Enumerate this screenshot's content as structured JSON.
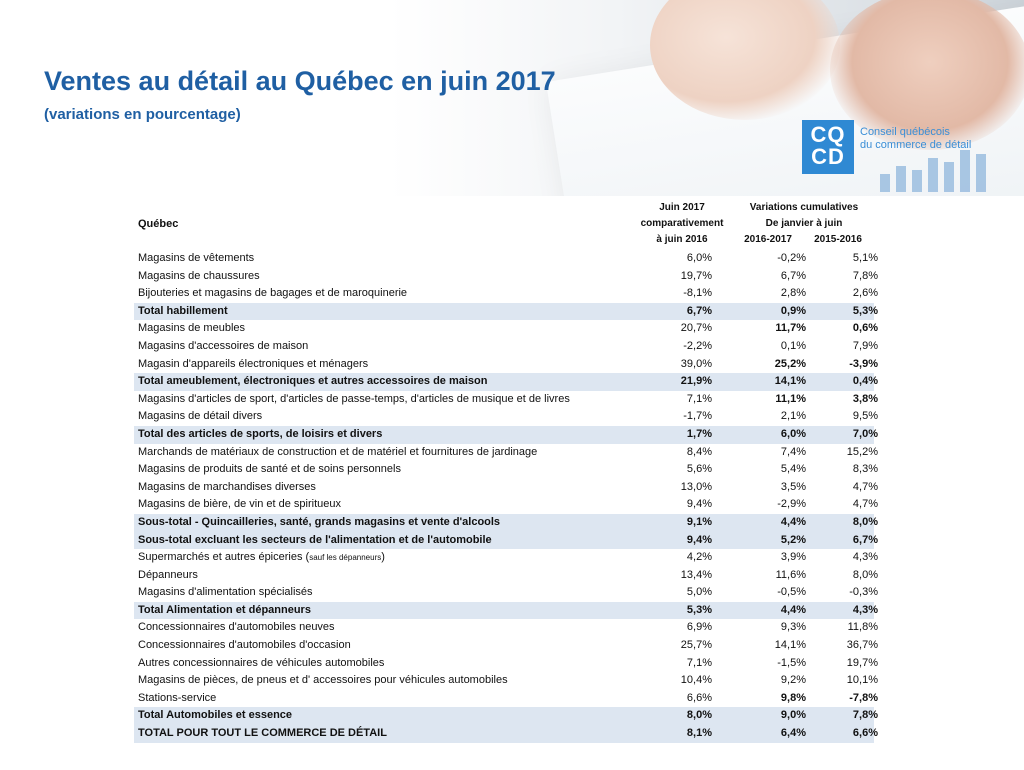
{
  "title": "Ventes au détail au Québec en juin 2017",
  "subtitle": "(variations en pourcentage)",
  "logo": {
    "letters_top": "CQ",
    "letters_bottom": "CD",
    "name_line1": "Conseil québécois",
    "name_line2": "du commerce de détail"
  },
  "table": {
    "region_label": "Québec",
    "col1_header": [
      "Juin 2017",
      "comparativement",
      "à juin 2016"
    ],
    "cumulative_header": [
      "Variations cumulatives",
      "De janvier à juin"
    ],
    "col2_header": "2016-2017",
    "col3_header": "2015-2016",
    "rows": [
      {
        "label": "Magasins de vêtements",
        "v1": "6,0%",
        "v2": "-0,2%",
        "v3": "5,1%",
        "total": false
      },
      {
        "label": "Magasins de chaussures",
        "v1": "19,7%",
        "v2": "6,7%",
        "v3": "7,8%",
        "total": false
      },
      {
        "label": "Bijouteries et magasins de bagages et de maroquinerie",
        "v1": "-8,1%",
        "v2": "2,8%",
        "v3": "2,6%",
        "total": false
      },
      {
        "label": "Total habillement",
        "v1": "6,7%",
        "v2": "0,9%",
        "v3": "5,3%",
        "total": true
      },
      {
        "label": "Magasins de meubles",
        "v1": "20,7%",
        "v2": "11,7%",
        "v3": "0,6%",
        "total": false,
        "bold2": true,
        "bold3": true
      },
      {
        "label": "Magasins d'accessoires de maison",
        "v1": "-2,2%",
        "v2": "0,1%",
        "v3": "7,9%",
        "total": false
      },
      {
        "label": "Magasin d'appareils électroniques et ménagers",
        "v1": "39,0%",
        "v2": "25,2%",
        "v3": "-3,9%",
        "total": false,
        "bold2": true,
        "bold3": true
      },
      {
        "label": "Total ameublement, électroniques et autres accessoires de maison",
        "v1": "21,9%",
        "v2": "14,1%",
        "v3": "0,4%",
        "total": true
      },
      {
        "label": "Magasins d'articles de sport, d'articles de passe-temps, d'articles de musique et de livres",
        "v1": "7,1%",
        "v2": "11,1%",
        "v3": "3,8%",
        "total": false,
        "bold2": true,
        "bold3": true
      },
      {
        "label": "Magasins de détail divers",
        "v1": "-1,7%",
        "v2": "2,1%",
        "v3": "9,5%",
        "total": false
      },
      {
        "label": "Total des articles de sports, de loisirs et divers",
        "v1": "1,7%",
        "v2": "6,0%",
        "v3": "7,0%",
        "total": true
      },
      {
        "label": "Marchands de matériaux de construction et de matériel et fournitures de jardinage",
        "v1": "8,4%",
        "v2": "7,4%",
        "v3": "15,2%",
        "total": false
      },
      {
        "label": "Magasins de produits de santé et de soins personnels",
        "v1": "5,6%",
        "v2": "5,4%",
        "v3": "8,3%",
        "total": false
      },
      {
        "label": "Magasins de marchandises diverses",
        "v1": "13,0%",
        "v2": "3,5%",
        "v3": "4,7%",
        "total": false
      },
      {
        "label": "Magasins de bière, de vin et de spiritueux",
        "v1": "9,4%",
        "v2": "-2,9%",
        "v3": "4,7%",
        "total": false
      },
      {
        "label": "Sous-total - Quincailleries, santé, grands magasins et vente d'alcools",
        "v1": "9,1%",
        "v2": "4,4%",
        "v3": "8,0%",
        "total": true
      },
      {
        "label": "Sous-total excluant les secteurs de l'alimentation et de l'automobile",
        "v1": "9,4%",
        "v2": "5,2%",
        "v3": "6,7%",
        "total": true
      },
      {
        "label": "Supermarchés et autres épiceries (",
        "note": "sauf les dépanneurs",
        "label_end": ")",
        "v1": "4,2%",
        "v2": "3,9%",
        "v3": "4,3%",
        "total": false
      },
      {
        "label": "Dépanneurs",
        "v1": "13,4%",
        "v2": "11,6%",
        "v3": "8,0%",
        "total": false
      },
      {
        "label": "Magasins d'alimentation spécialisés",
        "v1": "5,0%",
        "v2": "-0,5%",
        "v3": "-0,3%",
        "total": false
      },
      {
        "label": "Total Alimentation et dépanneurs",
        "v1": "5,3%",
        "v2": "4,4%",
        "v3": "4,3%",
        "total": true
      },
      {
        "label": "Concessionnaires d'automobiles neuves",
        "v1": "6,9%",
        "v2": "9,3%",
        "v3": "11,8%",
        "total": false
      },
      {
        "label": "Concessionnaires d'automobiles d'occasion",
        "v1": "25,7%",
        "v2": "14,1%",
        "v3": "36,7%",
        "total": false
      },
      {
        "label": "Autres concessionnaires de véhicules automobiles",
        "v1": "7,1%",
        "v2": "-1,5%",
        "v3": "19,7%",
        "total": false
      },
      {
        "label": "Magasins de pièces, de pneus et d' accessoires pour véhicules automobiles",
        "v1": "10,4%",
        "v2": "9,2%",
        "v3": "10,1%",
        "total": false
      },
      {
        "label": "Stations-service",
        "v1": "6,6%",
        "v2": "9,8%",
        "v3": "-7,8%",
        "total": false,
        "bold2": true,
        "bold3": true
      },
      {
        "label": "Total Automobiles et essence",
        "v1": "8,0%",
        "v2": "9,0%",
        "v3": "7,8%",
        "total": true
      },
      {
        "label": "TOTAL POUR TOUT LE COMMERCE DE DÉTAIL",
        "v1": "8,1%",
        "v2": "6,4%",
        "v3": "6,6%",
        "total": true
      }
    ]
  }
}
